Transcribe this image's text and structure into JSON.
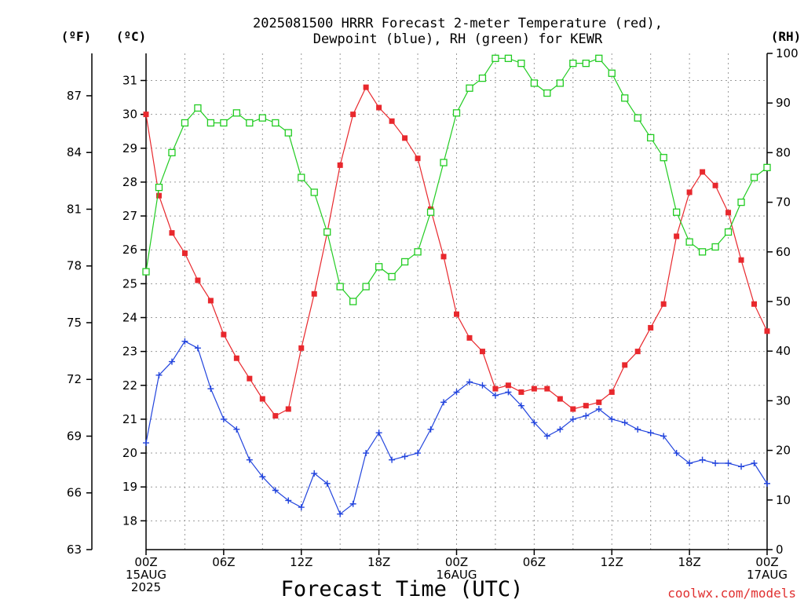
{
  "title_line1": "2025081500 HRRR Forecast 2-meter Temperature (red),",
  "title_line2": "Dewpoint (blue), RH (green) for KEWR",
  "unit_f": "(ºF)",
  "unit_c": "(ºC)",
  "unit_rh": "(RH)",
  "xlabel": "Forecast Time (UTC)",
  "credit": "coolwx.com/models",
  "colors": {
    "temp": "#e8282d",
    "dewpoint": "#2244dd",
    "rh": "#22cc22",
    "grid": "#9a9a9a"
  },
  "chart_data": {
    "type": "line",
    "x_hours": [
      0,
      1,
      2,
      3,
      4,
      5,
      6,
      7,
      8,
      9,
      10,
      11,
      12,
      13,
      14,
      15,
      16,
      17,
      18,
      19,
      20,
      21,
      22,
      23,
      24,
      25,
      26,
      27,
      28,
      29,
      30,
      31,
      32,
      33,
      34,
      35,
      36,
      37,
      38,
      39,
      40,
      41,
      42,
      43,
      44,
      45,
      46,
      47,
      48
    ],
    "x_ticks": [
      {
        "hour": 0,
        "line1": "00Z",
        "line2": "15AUG",
        "line3": "2025"
      },
      {
        "hour": 6,
        "line1": "06Z",
        "line2": "",
        "line3": ""
      },
      {
        "hour": 12,
        "line1": "12Z",
        "line2": "",
        "line3": ""
      },
      {
        "hour": 18,
        "line1": "18Z",
        "line2": "",
        "line3": ""
      },
      {
        "hour": 24,
        "line1": "00Z",
        "line2": "16AUG",
        "line3": ""
      },
      {
        "hour": 30,
        "line1": "06Z",
        "line2": "",
        "line3": ""
      },
      {
        "hour": 36,
        "line1": "12Z",
        "line2": "",
        "line3": ""
      },
      {
        "hour": 42,
        "line1": "18Z",
        "line2": "",
        "line3": ""
      },
      {
        "hour": 48,
        "line1": "00Z",
        "line2": "17AUG",
        "line3": ""
      }
    ],
    "xlim": [
      0,
      48
    ],
    "ylim_c": [
      17.15,
      31.8
    ],
    "ylim_f": [
      63,
      89.24
    ],
    "ylim_rh": [
      0,
      100
    ],
    "yticks_c": [
      18,
      19,
      20,
      21,
      22,
      23,
      24,
      25,
      26,
      27,
      28,
      29,
      30,
      31
    ],
    "yticks_f": [
      63,
      66,
      69,
      72,
      75,
      78,
      81,
      84,
      87
    ],
    "yticks_rh": [
      0,
      10,
      20,
      30,
      40,
      50,
      60,
      70,
      80,
      90,
      100
    ],
    "grid": true,
    "series": [
      {
        "name": "Temperature",
        "units": "C",
        "marker": "filled-square",
        "values": [
          30.0,
          27.6,
          26.5,
          25.9,
          25.1,
          24.5,
          23.5,
          22.8,
          22.2,
          21.6,
          21.1,
          21.3,
          23.1,
          24.7,
          26.5,
          28.5,
          30.0,
          30.8,
          30.2,
          29.8,
          29.3,
          28.7,
          27.2,
          25.8,
          24.1,
          23.4,
          23.0,
          21.9,
          22.0,
          21.8,
          21.9,
          21.9,
          21.6,
          21.3,
          21.4,
          21.5,
          21.8,
          22.6,
          23.0,
          23.7,
          24.4,
          26.4,
          27.7,
          28.3,
          27.9,
          27.1,
          25.7,
          24.4,
          23.6
        ]
      },
      {
        "name": "Dewpoint",
        "units": "C",
        "marker": "plus",
        "values": [
          20.3,
          22.3,
          22.7,
          23.3,
          23.1,
          21.9,
          21.0,
          20.7,
          19.8,
          19.3,
          18.9,
          18.6,
          18.4,
          19.4,
          19.1,
          18.2,
          18.5,
          20.0,
          20.6,
          19.8,
          19.9,
          20.0,
          20.7,
          21.5,
          21.8,
          22.1,
          22.0,
          21.7,
          21.8,
          21.4,
          20.9,
          20.5,
          20.7,
          21.0,
          21.1,
          21.3,
          21.0,
          20.9,
          20.7,
          20.6,
          20.5,
          20.0,
          19.7,
          19.8,
          19.7,
          19.7,
          19.6,
          19.7,
          19.1
        ]
      },
      {
        "name": "RH",
        "units": "%",
        "marker": "open-square",
        "values": [
          56,
          73,
          80,
          86,
          89,
          86,
          86,
          88,
          86,
          87,
          86,
          84,
          75,
          72,
          64,
          53,
          50,
          53,
          57,
          55,
          58,
          60,
          68,
          78,
          88,
          93,
          95,
          99,
          99,
          98,
          94,
          92,
          94,
          98,
          98,
          99,
          96,
          91,
          87,
          83,
          79,
          68,
          62,
          60,
          61,
          64,
          70,
          75,
          77
        ]
      }
    ]
  }
}
